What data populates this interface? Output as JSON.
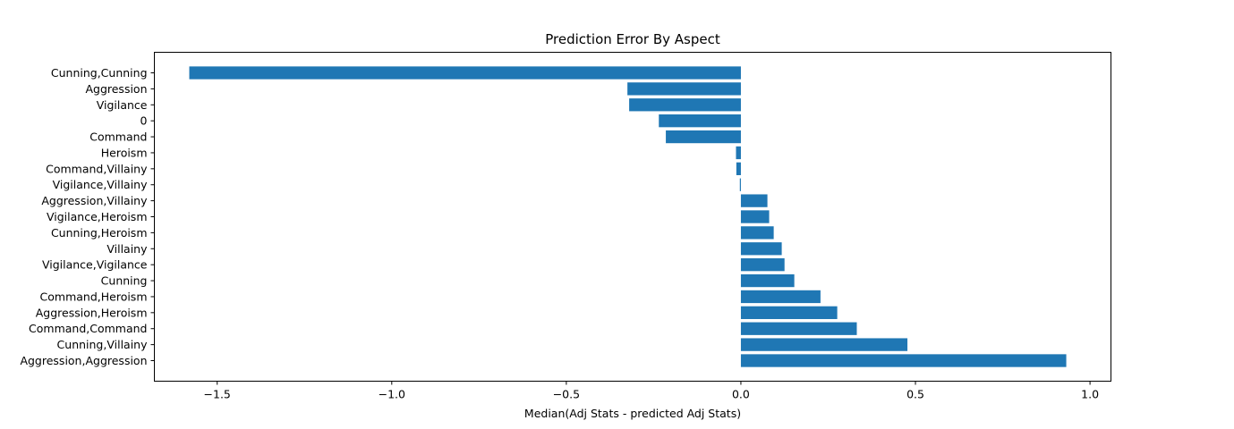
{
  "chart_data": {
    "type": "bar",
    "orientation": "horizontal",
    "title": "Prediction Error By Aspect",
    "xlabel": "Median(Adj Stats - predicted Adj Stats)",
    "ylabel": "",
    "xlim": [
      -1.68,
      1.06
    ],
    "xticks": [
      -1.5,
      -1.0,
      -0.5,
      0.0,
      0.5,
      1.0
    ],
    "xtick_labels": [
      "−1.5",
      "−1.0",
      "−0.5",
      "0.0",
      "0.5",
      "1.0"
    ],
    "categories": [
      "Cunning,Cunning",
      "Aggression",
      "Vigilance",
      "0",
      "Command",
      "Heroism",
      "Command,Villainy",
      "Vigilance,Villainy",
      "Aggression,Villainy",
      "Vigilance,Heroism",
      "Cunning,Heroism",
      "Villainy",
      "Vigilance,Vigilance",
      "Cunning",
      "Command,Heroism",
      "Aggression,Heroism",
      "Command,Command",
      "Cunning,Villainy",
      "Aggression,Aggression"
    ],
    "values": [
      -1.58,
      -0.325,
      -0.32,
      -0.235,
      -0.215,
      -0.014,
      -0.013,
      -0.003,
      0.076,
      0.081,
      0.094,
      0.117,
      0.125,
      0.153,
      0.228,
      0.276,
      0.332,
      0.477,
      0.932
    ],
    "bar_color": "#1f77b4",
    "grid": false,
    "legend": "none"
  }
}
